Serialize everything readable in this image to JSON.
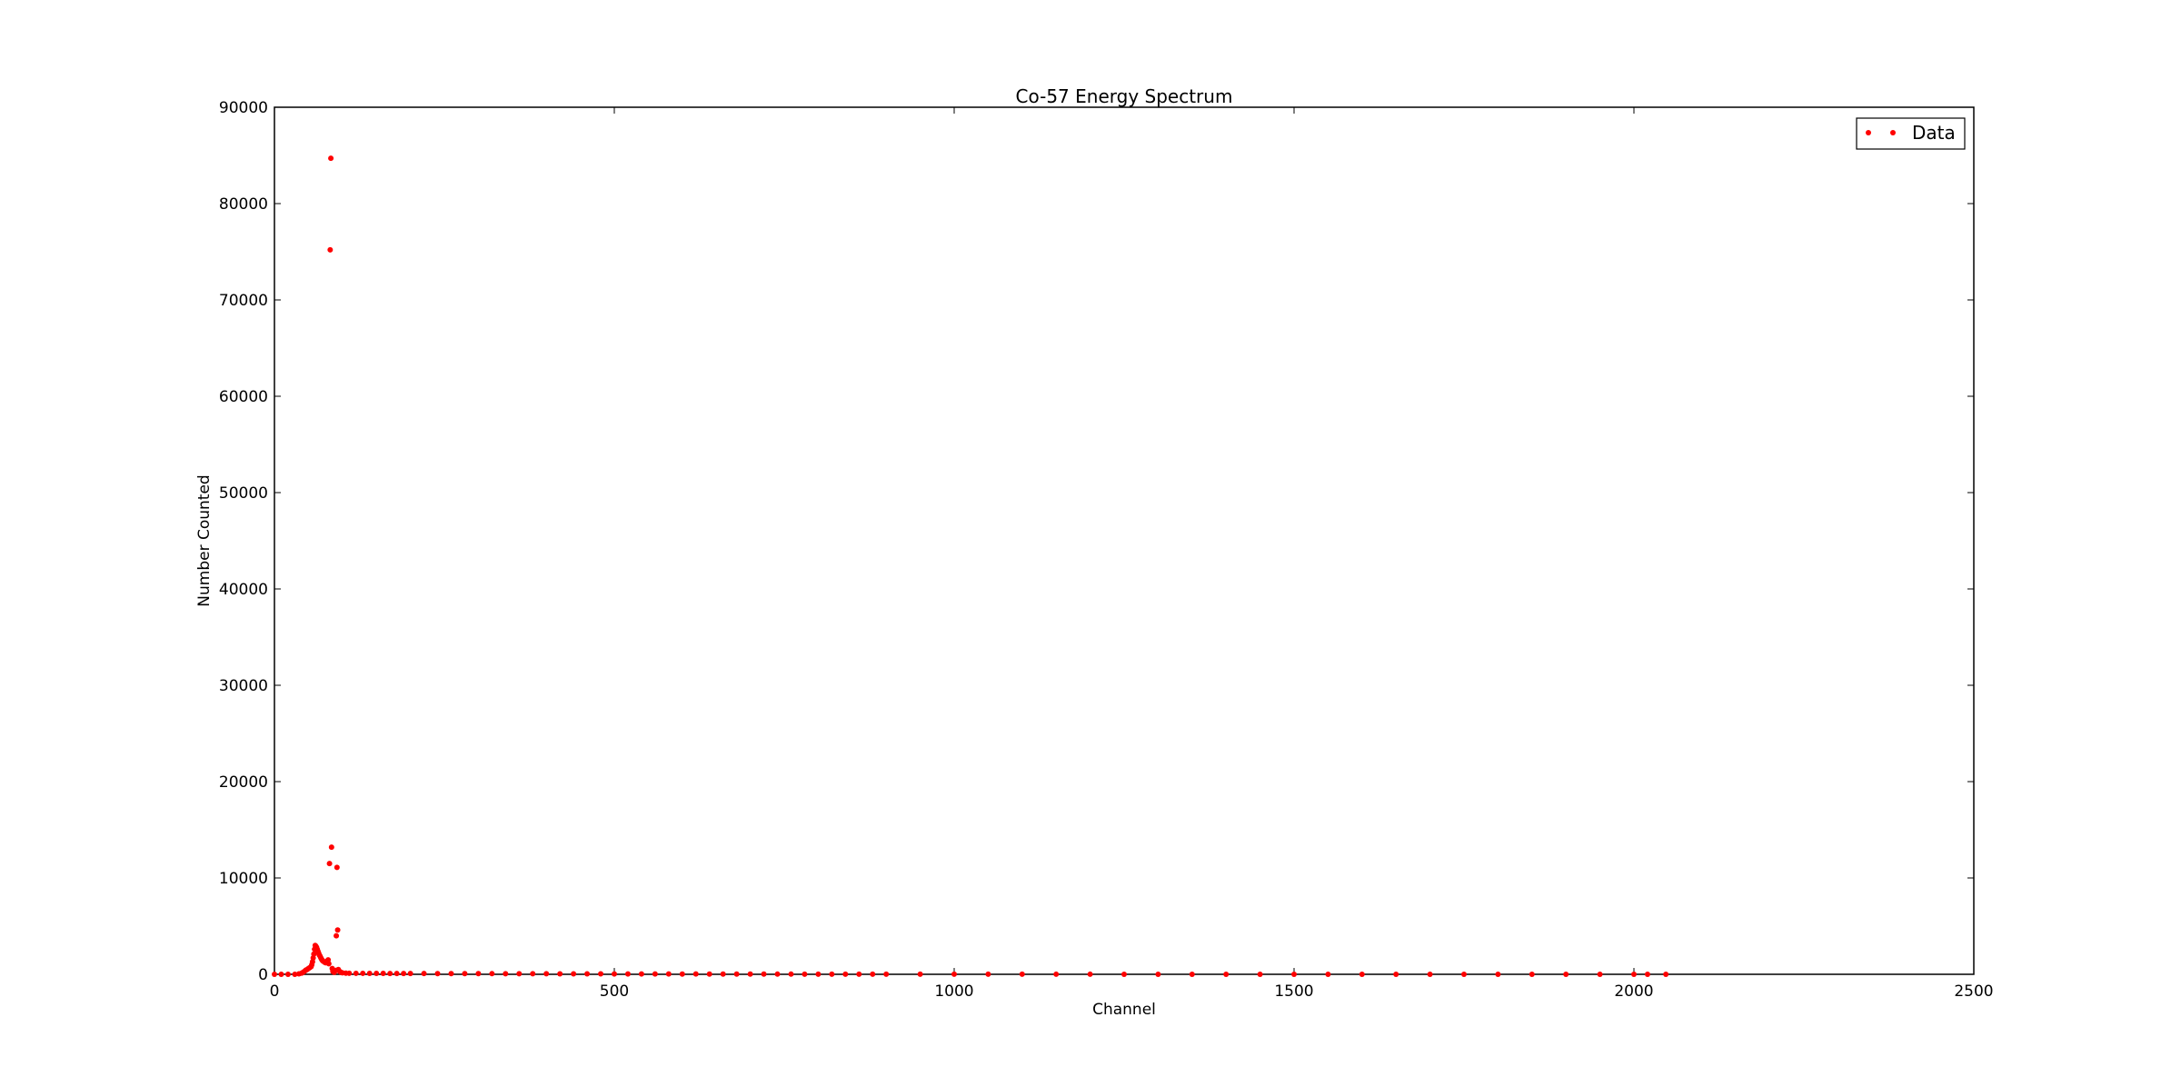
{
  "chart_data": {
    "type": "scatter",
    "title": "Co-57 Energy Spectrum",
    "xlabel": "Channel",
    "ylabel": "Number Counted",
    "xlim": [
      0,
      2500
    ],
    "ylim": [
      0,
      90000
    ],
    "xticks": [
      0,
      500,
      1000,
      1500,
      2000,
      2500
    ],
    "yticks": [
      0,
      10000,
      20000,
      30000,
      40000,
      50000,
      60000,
      70000,
      80000,
      90000
    ],
    "xtick_labels": [
      "0",
      "500",
      "1000",
      "1500",
      "2000",
      "2500"
    ],
    "ytick_labels": [
      "0",
      "10000",
      "20000",
      "30000",
      "40000",
      "50000",
      "60000",
      "70000",
      "80000",
      "90000"
    ],
    "grid": false,
    "legend_position": "top-right",
    "series": [
      {
        "name": "Data",
        "color": "#ff0000",
        "marker": "point",
        "points": [
          [
            0,
            0
          ],
          [
            10,
            0
          ],
          [
            20,
            0
          ],
          [
            30,
            0
          ],
          [
            36,
            50
          ],
          [
            40,
            120
          ],
          [
            42,
            200
          ],
          [
            44,
            300
          ],
          [
            46,
            420
          ],
          [
            48,
            500
          ],
          [
            50,
            600
          ],
          [
            52,
            700
          ],
          [
            54,
            800
          ],
          [
            55,
            1000
          ],
          [
            56,
            1300
          ],
          [
            57,
            1700
          ],
          [
            58,
            2100
          ],
          [
            59,
            2600
          ],
          [
            60,
            3000
          ],
          [
            61,
            2900
          ],
          [
            62,
            2800
          ],
          [
            63,
            2600
          ],
          [
            64,
            2400
          ],
          [
            65,
            2200
          ],
          [
            66,
            2000
          ],
          [
            67,
            1900
          ],
          [
            68,
            1750
          ],
          [
            69,
            1600
          ],
          [
            70,
            1500
          ],
          [
            71,
            1400
          ],
          [
            72,
            1350
          ],
          [
            73,
            1300
          ],
          [
            74,
            1250
          ],
          [
            75,
            1200
          ],
          [
            76,
            1200
          ],
          [
            77,
            1250
          ],
          [
            78,
            1400
          ],
          [
            79,
            1500
          ],
          [
            80,
            1100
          ],
          [
            81,
            11500
          ],
          [
            82,
            75200
          ],
          [
            83,
            84700
          ],
          [
            84,
            13200
          ],
          [
            85,
            600
          ],
          [
            86,
            300
          ],
          [
            88,
            200
          ],
          [
            90,
            400
          ],
          [
            91,
            4000
          ],
          [
            92,
            11100
          ],
          [
            93,
            4600
          ],
          [
            94,
            500
          ],
          [
            96,
            300
          ],
          [
            98,
            200
          ],
          [
            100,
            150
          ],
          [
            105,
            120
          ],
          [
            110,
            110
          ],
          [
            120,
            100
          ],
          [
            130,
            100
          ],
          [
            140,
            95
          ],
          [
            150,
            90
          ],
          [
            160,
            90
          ],
          [
            170,
            85
          ],
          [
            180,
            85
          ],
          [
            190,
            80
          ],
          [
            200,
            80
          ],
          [
            220,
            78
          ],
          [
            240,
            75
          ],
          [
            260,
            72
          ],
          [
            280,
            70
          ],
          [
            300,
            68
          ],
          [
            320,
            65
          ],
          [
            340,
            62
          ],
          [
            360,
            60
          ],
          [
            380,
            58
          ],
          [
            400,
            55
          ],
          [
            420,
            52
          ],
          [
            440,
            50
          ],
          [
            460,
            45
          ],
          [
            480,
            42
          ],
          [
            500,
            40
          ],
          [
            520,
            38
          ],
          [
            540,
            35
          ],
          [
            560,
            33
          ],
          [
            580,
            30
          ],
          [
            600,
            28
          ],
          [
            620,
            30
          ],
          [
            640,
            26
          ],
          [
            660,
            24
          ],
          [
            680,
            22
          ],
          [
            700,
            24
          ],
          [
            720,
            20
          ],
          [
            740,
            18
          ],
          [
            760,
            18
          ],
          [
            780,
            16
          ],
          [
            800,
            15
          ],
          [
            820,
            14
          ],
          [
            840,
            13
          ],
          [
            860,
            12
          ],
          [
            880,
            11
          ],
          [
            900,
            10
          ],
          [
            950,
            9
          ],
          [
            1000,
            8
          ],
          [
            1050,
            7
          ],
          [
            1100,
            7
          ],
          [
            1150,
            6
          ],
          [
            1200,
            6
          ],
          [
            1250,
            5
          ],
          [
            1300,
            5
          ],
          [
            1350,
            5
          ],
          [
            1400,
            4
          ],
          [
            1450,
            4
          ],
          [
            1500,
            4
          ],
          [
            1550,
            3
          ],
          [
            1600,
            3
          ],
          [
            1650,
            3
          ],
          [
            1700,
            3
          ],
          [
            1750,
            2
          ],
          [
            1800,
            2
          ],
          [
            1850,
            2
          ],
          [
            1900,
            2
          ],
          [
            1950,
            2
          ],
          [
            2000,
            2
          ],
          [
            2020,
            1
          ],
          [
            2047,
            1
          ]
        ]
      }
    ]
  }
}
